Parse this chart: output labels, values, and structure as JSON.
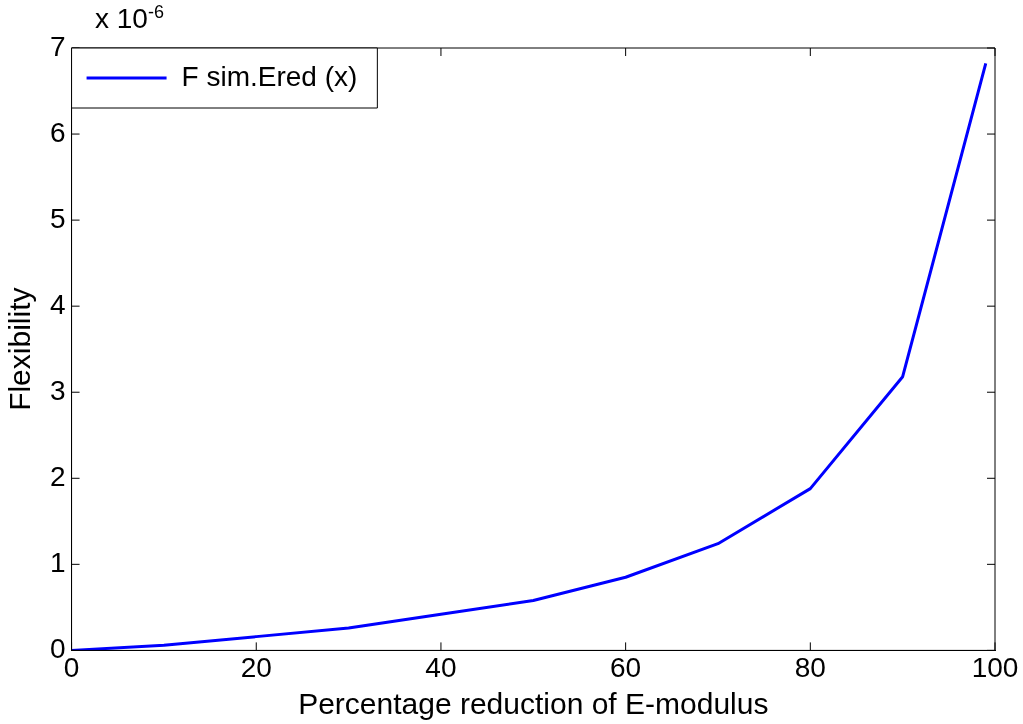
{
  "chart_data": {
    "type": "line",
    "xlabel": "Percentage reduction of E-modulus",
    "ylabel": "Flexibility",
    "annotations": [
      "x 10$^{-6}$"
    ],
    "x": [
      0,
      10,
      20,
      30,
      40,
      50,
      60,
      70,
      80,
      90,
      99
    ],
    "series": [
      {
        "name": "F sim.Ered (x)",
        "color": "#0000ff",
        "values": [
          0,
          0.06,
          0.16,
          0.26,
          0.42,
          0.58,
          0.85,
          1.24,
          1.88,
          3.18,
          6.82
        ]
      }
    ],
    "xlim": [
      0,
      100
    ],
    "xticks": [
      0,
      20,
      40,
      60,
      80,
      100
    ],
    "ylim": [
      0,
      7
    ],
    "yticks": [
      0,
      1,
      2,
      3,
      4,
      5,
      6,
      7
    ],
    "grid": false,
    "legend": "top left",
    "marker": "none",
    "line_style": "solid"
  }
}
